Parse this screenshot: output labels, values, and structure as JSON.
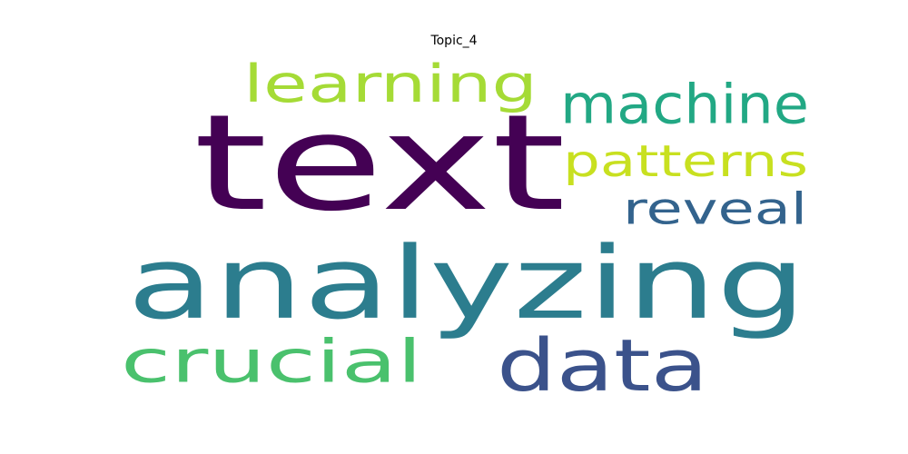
{
  "chart_data": {
    "type": "wordcloud",
    "title": "Topic_4",
    "words": [
      {
        "text": "text",
        "color": "#440154"
      },
      {
        "text": "analyzing",
        "color": "#2c7d8e"
      },
      {
        "text": "data",
        "color": "#3b528b"
      },
      {
        "text": "learning",
        "color": "#a5db36"
      },
      {
        "text": "machine",
        "color": "#22a884"
      },
      {
        "text": "patterns",
        "color": "#c8e020"
      },
      {
        "text": "reveal",
        "color": "#33638d"
      },
      {
        "text": "crucial",
        "color": "#4ac16d"
      }
    ]
  }
}
